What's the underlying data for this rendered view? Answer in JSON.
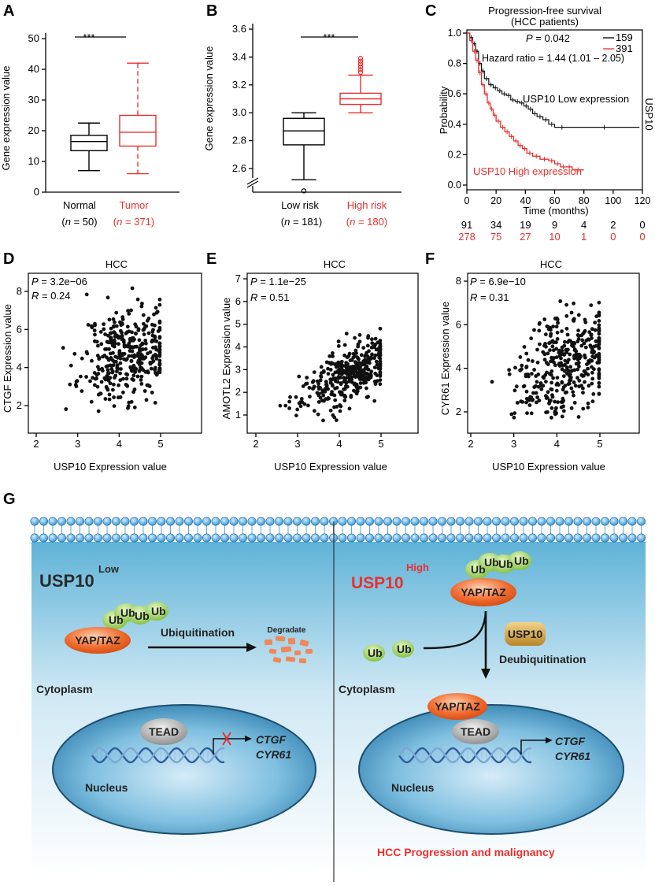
{
  "figure": {
    "panel_labels": [
      "A",
      "B",
      "C",
      "D",
      "E",
      "F",
      "G"
    ],
    "red": "#e8312e"
  },
  "panelA": {
    "ylabel": "Gene expression value",
    "yticks": [
      "0",
      "10",
      "20",
      "30",
      "40",
      "50"
    ],
    "sig": "***",
    "groups": [
      {
        "name": "Normal",
        "n": "(n = 50)",
        "n_lead": "(",
        "n_var": "n",
        "n_rest": " = 50)",
        "color": "#000000",
        "min": 7,
        "q1": 13.5,
        "median": 16.5,
        "q3": 18.5,
        "max": 22.5
      },
      {
        "name": "Tumor",
        "n": "(n = 371)",
        "n_lead": "(",
        "n_var": "n",
        "n_rest": " = 371)",
        "color": "#e8312e",
        "min": 6,
        "q1": 15,
        "median": 19.5,
        "q3": 25,
        "max": 42
      }
    ]
  },
  "panelB": {
    "ylabel": "Gene expression value",
    "yticks": [
      "2.6",
      "2.8",
      "3.0",
      "3.2",
      "3.4",
      "3.6"
    ],
    "sig": "***",
    "groups": [
      {
        "name": "Low risk",
        "n_lead": "(",
        "n_var": "n",
        "n_rest": " = 181)",
        "color": "#000000",
        "min": 2.52,
        "q1": 2.77,
        "median": 2.87,
        "q3": 2.96,
        "max": 3.0,
        "outliers": [
          2.44
        ]
      },
      {
        "name": "High risk",
        "n_lead": "(",
        "n_var": "n",
        "n_rest": " = 180)",
        "color": "#e8312e",
        "min": 3.0,
        "q1": 3.06,
        "median": 3.1,
        "q3": 3.14,
        "max": 3.27,
        "outliers": [
          3.29,
          3.31,
          3.33,
          3.35,
          3.37,
          3.39
        ]
      }
    ]
  },
  "panelC": {
    "title1": "Progression-free survival",
    "title2": "(HCC patients)",
    "p_text": "P = 0.042",
    "p_var": "P",
    "p_rest": " = 0.042",
    "hr_text": "Hazard ratio = 1.44 (1.01 – 2.05)",
    "legend": [
      {
        "label": "159",
        "color": "#000000"
      },
      {
        "label": "391",
        "color": "#e8312e"
      }
    ],
    "ylabel": "Probability",
    "xlabel": "Time (months)",
    "side_label": "USP10",
    "low_label": "USP10 Low expression",
    "high_label": "USP10 High expression",
    "yticks": [
      "0.0",
      "0.2",
      "0.4",
      "0.6",
      "0.8",
      "1.0"
    ],
    "xticks": [
      "0",
      "20",
      "40",
      "60",
      "80",
      "100",
      "120"
    ],
    "risk_low": [
      "91",
      "34",
      "19",
      "9",
      "4",
      "2",
      "0"
    ],
    "risk_high": [
      "278",
      "75",
      "27",
      "10",
      "1",
      "0",
      "0"
    ]
  },
  "panelD": {
    "title": "HCC",
    "p_var": "P",
    "p_rest": " = 3.2e−06",
    "r_var": "R",
    "r_rest": " = 0.24",
    "xlabel": "USP10 Expression value",
    "ylabel": "CTGF Expression value",
    "xticks": [
      "2",
      "3",
      "4",
      "5"
    ],
    "yticks": [
      "2",
      "4",
      "6",
      "8"
    ]
  },
  "panelE": {
    "title": "HCC",
    "p_var": "P",
    "p_rest": " = 1.1e−25",
    "r_var": "R",
    "r_rest": " = 0.51",
    "xlabel": "USP10 Expression value",
    "ylabel": "AMOTL2 Expression value",
    "xticks": [
      "2",
      "3",
      "4",
      "5"
    ],
    "yticks": [
      "1",
      "2",
      "3",
      "4",
      "5",
      "6",
      "7"
    ]
  },
  "panelF": {
    "title": "HCC",
    "p_var": "P",
    "p_rest": " = 6.9e−10",
    "r_var": "R",
    "r_rest": " = 0.31",
    "xlabel": "USP10 Expression value",
    "ylabel": "CYR61 Expression value",
    "xticks": [
      "2",
      "3",
      "4",
      "5"
    ],
    "yticks": [
      "2",
      "4",
      "6",
      "8"
    ]
  },
  "panelG": {
    "left_title": "USP10",
    "left_sup": "Low",
    "right_title": "USP10",
    "right_sup": "High",
    "yap": "YAP/TAZ",
    "ub": "Ub",
    "ubiquitination": "Ubiquitination",
    "degradate": "Degradate",
    "cytoplasm": "Cytoplasm",
    "tead": "TEAD",
    "ctgf": "CTGF",
    "cyr61": "CYR61",
    "nucleus": "Nucleus",
    "usp10_box": "USP10",
    "deubiquitination": "Deubiquitination",
    "outcome": "HCC  Progression and malignancy"
  }
}
